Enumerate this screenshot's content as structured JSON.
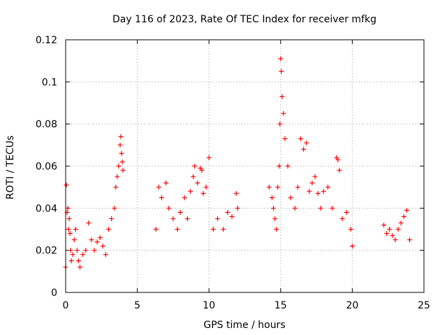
{
  "chart_data": {
    "type": "scatter",
    "title": "Day 116 of 2023, Rate Of TEC Index for receiver mfkg",
    "xlabel": "GPS time / hours",
    "ylabel": "ROTI / TECUs",
    "xlim": [
      0,
      25
    ],
    "ylim": [
      0,
      0.12
    ],
    "xticks": [
      0,
      5,
      10,
      15,
      20,
      25
    ],
    "xtick_labels": [
      "0",
      "5",
      "10",
      "15",
      "20",
      "25"
    ],
    "yticks": [
      0,
      0.02,
      0.04,
      0.06,
      0.08,
      0.1,
      0.12
    ],
    "ytick_labels": [
      "0",
      "0.02",
      "0.04",
      "0.06",
      "0.08",
      "0.1",
      "0.12"
    ],
    "grid": true,
    "marker": "plus",
    "series": [
      {
        "name": "ROTI",
        "color": "#ff0000",
        "x": [
          0.0,
          0.05,
          0.1,
          0.15,
          0.2,
          0.25,
          0.3,
          0.35,
          0.4,
          0.5,
          0.6,
          0.7,
          0.8,
          0.9,
          1.0,
          1.2,
          1.4,
          1.6,
          1.8,
          2.0,
          2.2,
          2.4,
          2.6,
          2.8,
          3.0,
          3.2,
          3.4,
          3.5,
          3.6,
          3.7,
          3.8,
          3.85,
          3.9,
          3.95,
          4.0,
          6.3,
          6.5,
          6.7,
          7.0,
          7.2,
          7.5,
          7.8,
          8.0,
          8.3,
          8.5,
          8.7,
          8.9,
          9.0,
          9.2,
          9.4,
          9.5,
          9.6,
          9.8,
          10.0,
          10.3,
          10.6,
          11.0,
          11.3,
          11.6,
          11.9,
          12.0,
          14.2,
          14.4,
          14.5,
          14.6,
          14.7,
          14.8,
          14.9,
          14.95,
          15.0,
          15.05,
          15.1,
          15.2,
          15.3,
          15.5,
          15.7,
          16.0,
          16.2,
          16.4,
          16.6,
          16.8,
          17.0,
          17.2,
          17.4,
          17.6,
          17.8,
          18.0,
          18.3,
          18.6,
          18.9,
          19.0,
          19.1,
          19.3,
          19.6,
          19.9,
          20.0,
          22.2,
          22.4,
          22.6,
          22.8,
          23.0,
          23.2,
          23.4,
          23.6,
          23.8,
          24.0
        ],
        "y": [
          0.012,
          0.051,
          0.038,
          0.04,
          0.03,
          0.035,
          0.028,
          0.02,
          0.015,
          0.018,
          0.025,
          0.03,
          0.02,
          0.015,
          0.012,
          0.018,
          0.02,
          0.033,
          0.025,
          0.02,
          0.024,
          0.026,
          0.022,
          0.018,
          0.03,
          0.035,
          0.04,
          0.05,
          0.055,
          0.06,
          0.07,
          0.074,
          0.066,
          0.062,
          0.058,
          0.03,
          0.05,
          0.045,
          0.052,
          0.04,
          0.035,
          0.03,
          0.038,
          0.045,
          0.035,
          0.048,
          0.055,
          0.06,
          0.052,
          0.059,
          0.058,
          0.047,
          0.05,
          0.064,
          0.03,
          0.035,
          0.03,
          0.038,
          0.036,
          0.047,
          0.04,
          0.05,
          0.045,
          0.04,
          0.035,
          0.03,
          0.05,
          0.06,
          0.08,
          0.111,
          0.105,
          0.093,
          0.085,
          0.073,
          0.06,
          0.045,
          0.04,
          0.05,
          0.073,
          0.068,
          0.071,
          0.048,
          0.052,
          0.055,
          0.047,
          0.04,
          0.048,
          0.05,
          0.04,
          0.064,
          0.063,
          0.058,
          0.035,
          0.038,
          0.03,
          0.022,
          0.032,
          0.028,
          0.03,
          0.027,
          0.025,
          0.03,
          0.033,
          0.036,
          0.039,
          0.025
        ]
      }
    ]
  }
}
